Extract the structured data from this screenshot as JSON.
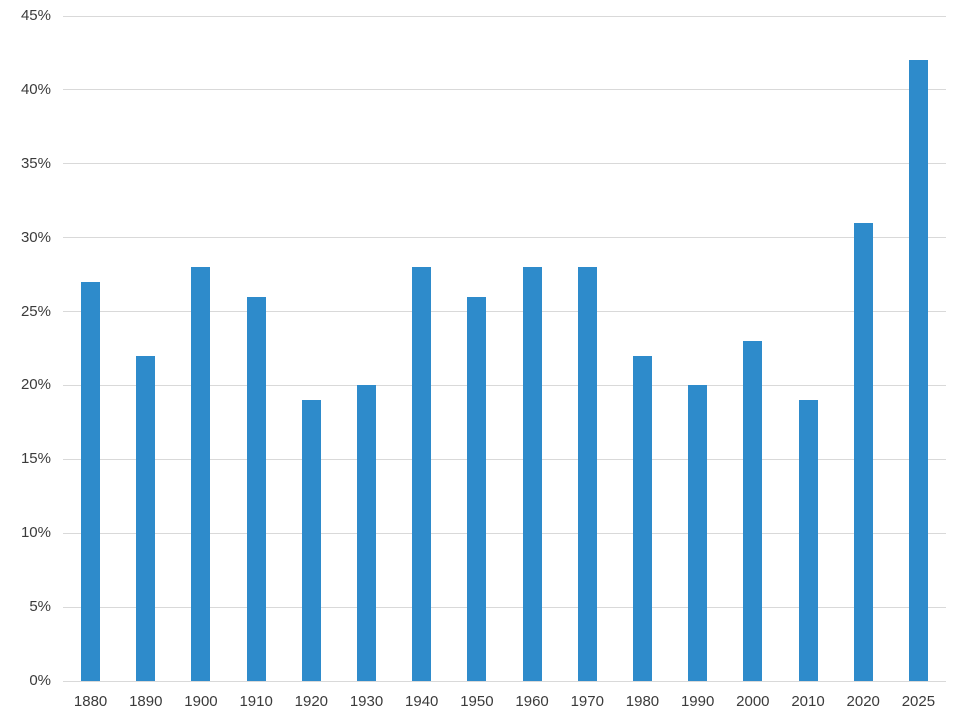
{
  "chart_data": {
    "type": "bar",
    "title": "",
    "xlabel": "",
    "ylabel": "",
    "categories": [
      "1880",
      "1890",
      "1900",
      "1910",
      "1920",
      "1930",
      "1940",
      "1950",
      "1960",
      "1970",
      "1980",
      "1990",
      "2000",
      "2010",
      "2020",
      "2025"
    ],
    "values": [
      27,
      22,
      28,
      26,
      19,
      20,
      28,
      26,
      28,
      28,
      22,
      20,
      23,
      19,
      31,
      42
    ],
    "value_format": "percent",
    "ylim": [
      0,
      45
    ],
    "ytick_step": 5,
    "ytick_labels": [
      "0%",
      "5%",
      "10%",
      "15%",
      "20%",
      "25%",
      "30%",
      "35%",
      "40%",
      "45%"
    ],
    "grid": true,
    "legend": false,
    "colors": {
      "bar": "#2e8bcb",
      "gridline": "#d9d9d9",
      "labels": "#3b3b3b",
      "background": "#ffffff"
    }
  },
  "layout_hints": {
    "gridlines_horizontal_only": true,
    "no_axis_lines": true,
    "bars_single_series": true
  }
}
